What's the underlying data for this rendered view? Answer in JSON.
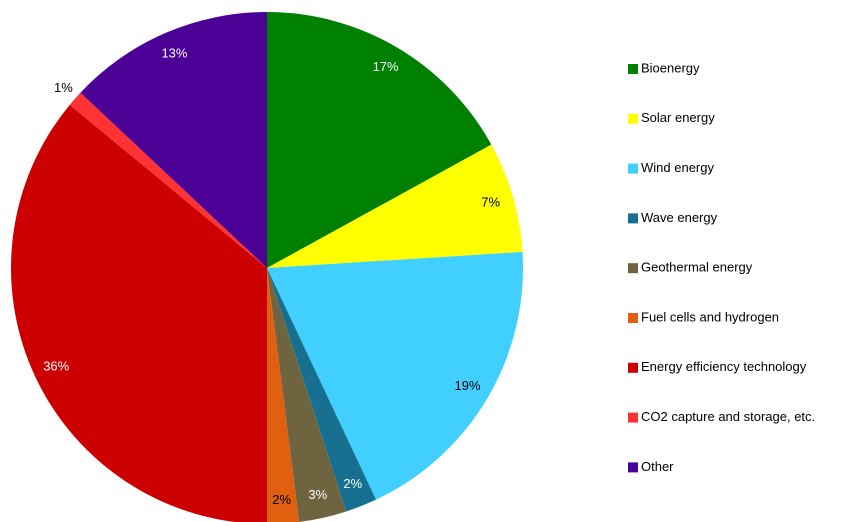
{
  "chart_data": {
    "type": "pie",
    "categories": [
      "Bioenergy",
      "Solar energy",
      "Wind energy",
      "Wave energy",
      "Geothermal energy",
      "Fuel cells and hydrogen",
      "Energy efficiency technology",
      "CO2 capture and storage, etc.",
      "Other"
    ],
    "values": [
      17,
      7,
      19,
      2,
      3,
      2,
      36,
      1,
      13
    ],
    "value_labels": [
      "17%",
      "7%",
      "19%",
      "2%",
      "3%",
      "2%",
      "36%",
      "1%",
      "13%"
    ],
    "colors": [
      "#008000",
      "#ffff00",
      "#40cfff",
      "#17708f",
      "#6e6440",
      "#e06010",
      "#cc0000",
      "#ff3333",
      "#4b0096"
    ],
    "legend": "right"
  }
}
